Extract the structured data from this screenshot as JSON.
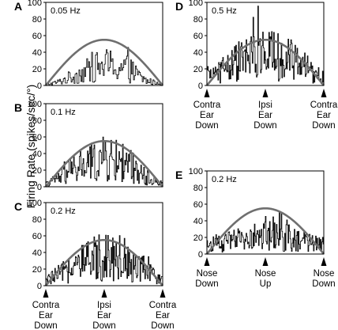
{
  "figure": {
    "ylabel": "Firing Rate (spikes/sec/°)"
  },
  "chart_data": [
    {
      "panel_letter": "A",
      "freq_label": "0.05 Hz",
      "type": "line",
      "ylim": [
        0,
        100
      ],
      "yticks": [
        "0",
        "20",
        "40",
        "60",
        "80",
        "100"
      ],
      "xlim": [
        0,
        1
      ],
      "grid": false,
      "position_labels": [],
      "series": [
        {
          "role": "fit",
          "type": "sinusoid",
          "x": [
            0,
            0.5,
            1
          ],
          "values": [
            0,
            55,
            0
          ]
        },
        {
          "role": "response",
          "type": "histogram",
          "bins": 120,
          "envelope_x": [
            0,
            0.1,
            0.3,
            0.5,
            0.7,
            0.85,
            1
          ],
          "envelope_mean": [
            1,
            4,
            15,
            25,
            20,
            6,
            1
          ]
        }
      ]
    },
    {
      "panel_letter": "B",
      "freq_label": "0.1 Hz",
      "type": "line",
      "ylim": [
        0,
        100
      ],
      "yticks": [
        "0",
        "20",
        "40",
        "60",
        "80",
        "100"
      ],
      "xlim": [
        0,
        1
      ],
      "grid": false,
      "position_labels": [],
      "series": [
        {
          "role": "fit",
          "type": "sinusoid",
          "x": [
            0,
            0.5,
            1
          ],
          "values": [
            0,
            55,
            0
          ]
        },
        {
          "role": "response",
          "type": "histogram",
          "bins": 160,
          "envelope_x": [
            0,
            0.1,
            0.3,
            0.5,
            0.7,
            0.85,
            1
          ],
          "envelope_mean": [
            3,
            10,
            25,
            33,
            28,
            12,
            3
          ]
        }
      ]
    },
    {
      "panel_letter": "C",
      "freq_label": "0.2 Hz",
      "type": "line",
      "ylim": [
        0,
        100
      ],
      "yticks": [
        "0",
        "20",
        "40",
        "60",
        "80",
        "100"
      ],
      "xlim": [
        0,
        1
      ],
      "grid": false,
      "position_labels": [
        "Contra\nEar\nDown",
        "Ipsi\nEar\nDown",
        "Contra\nEar\nDown"
      ],
      "series": [
        {
          "role": "fit",
          "type": "sinusoid",
          "x": [
            0,
            0.5,
            1
          ],
          "values": [
            0,
            55,
            0
          ]
        },
        {
          "role": "response",
          "type": "histogram",
          "bins": 170,
          "envelope_x": [
            0,
            0.1,
            0.3,
            0.5,
            0.7,
            0.85,
            1
          ],
          "envelope_mean": [
            6,
            13,
            25,
            38,
            32,
            18,
            6
          ]
        }
      ]
    },
    {
      "panel_letter": "D",
      "freq_label": "0.5 Hz",
      "type": "line",
      "ylim": [
        0,
        100
      ],
      "yticks": [
        "0",
        "20",
        "40",
        "60",
        "80",
        "100"
      ],
      "xlim": [
        0,
        1
      ],
      "grid": false,
      "position_labels": [
        "Contra\nEar\nDown",
        "Ipsi\nEar\nDown",
        "Contra\nEar\nDown"
      ],
      "series": [
        {
          "role": "fit",
          "type": "sinusoid",
          "x": [
            0,
            0.5,
            1
          ],
          "values": [
            0,
            55,
            0
          ]
        },
        {
          "role": "response",
          "type": "histogram",
          "bins": 170,
          "envelope_x": [
            0,
            0.1,
            0.3,
            0.5,
            0.7,
            0.85,
            1
          ],
          "envelope_mean": [
            12,
            18,
            30,
            38,
            32,
            20,
            10
          ]
        }
      ]
    },
    {
      "panel_letter": "E",
      "freq_label": "0.2 Hz",
      "type": "line",
      "ylim": [
        0,
        100
      ],
      "yticks": [
        "0",
        "20",
        "40",
        "60",
        "80",
        "100"
      ],
      "xlim": [
        0,
        1
      ],
      "grid": false,
      "position_labels": [
        "Nose\nDown",
        "Nose\nUp",
        "Nose\nDown"
      ],
      "series": [
        {
          "role": "fit",
          "type": "sinusoid",
          "x": [
            0,
            0.5,
            1
          ],
          "values": [
            0,
            55,
            0
          ]
        },
        {
          "role": "response",
          "type": "histogram",
          "bins": 170,
          "envelope_x": [
            0,
            0.1,
            0.3,
            0.5,
            0.7,
            0.85,
            1
          ],
          "envelope_mean": [
            10,
            12,
            18,
            22,
            20,
            14,
            12
          ]
        }
      ]
    }
  ]
}
